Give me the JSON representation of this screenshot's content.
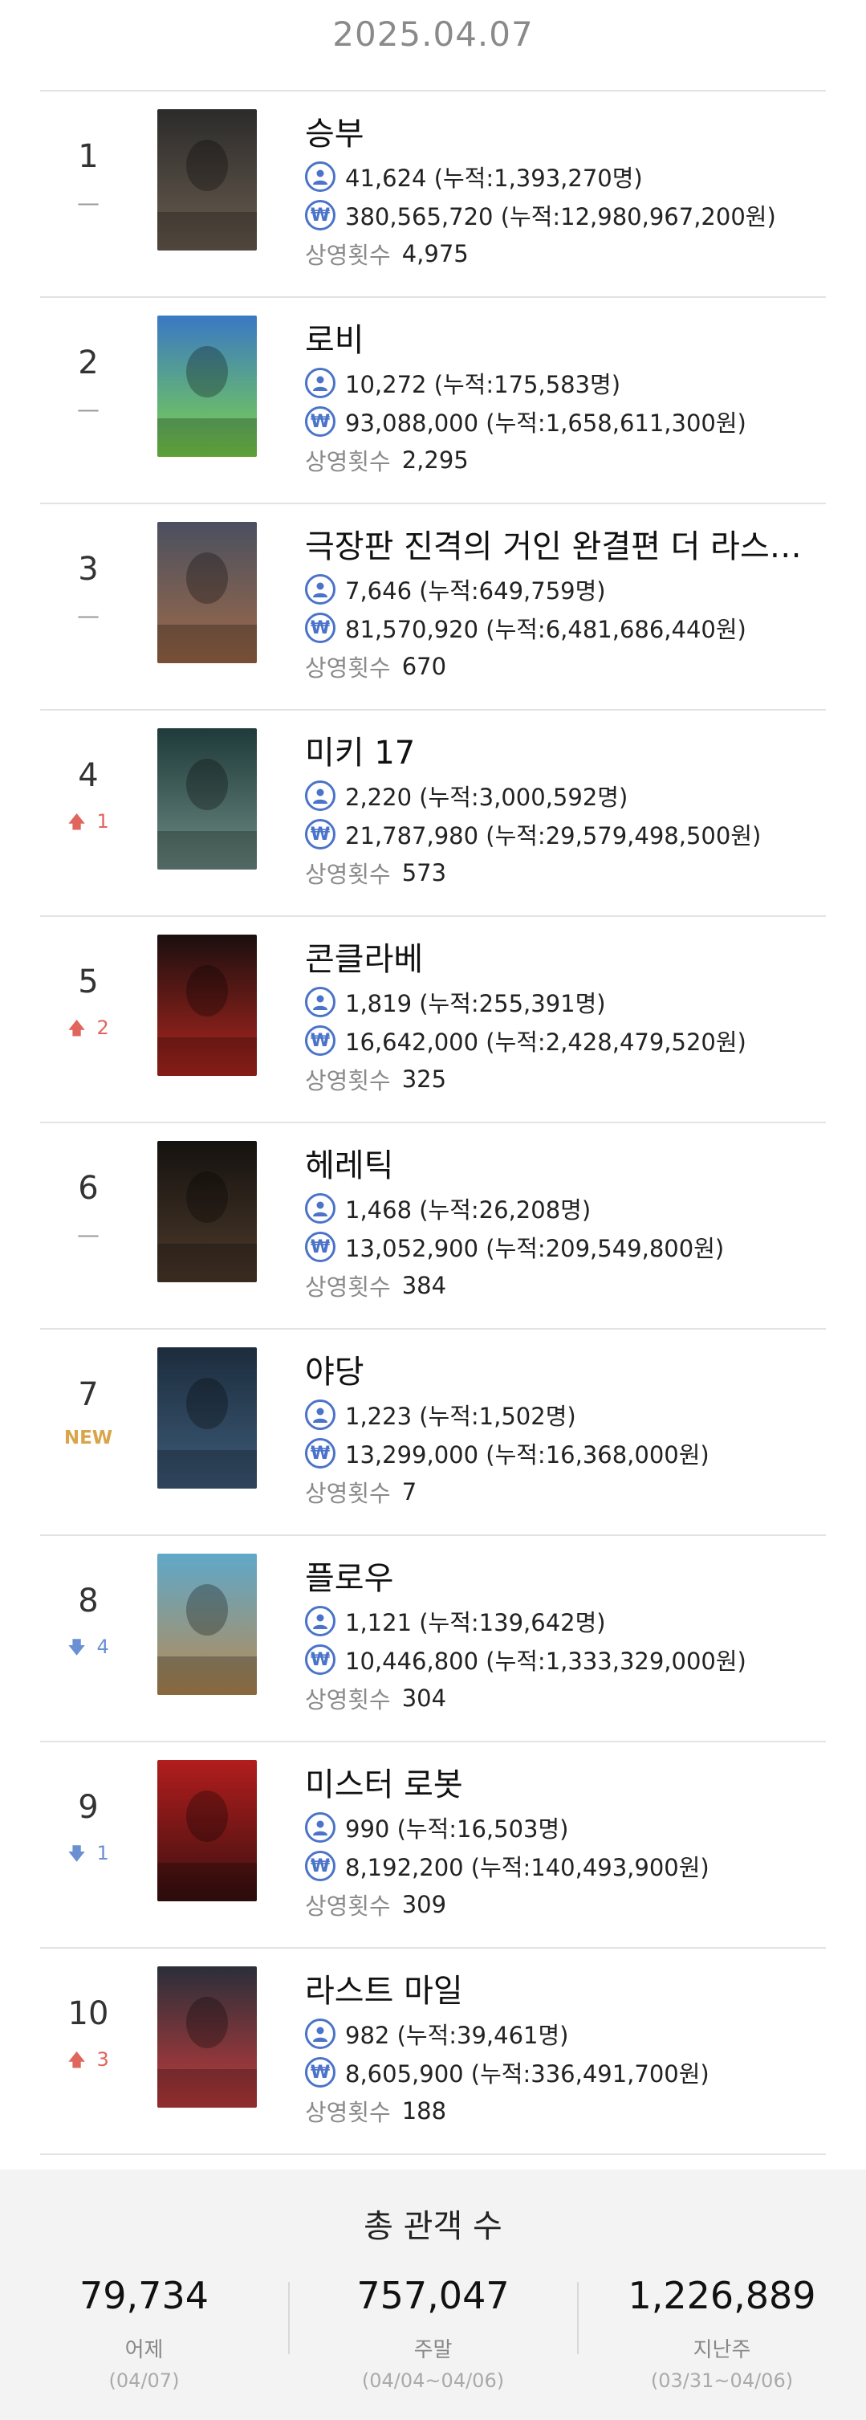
{
  "date": "2025.04.07",
  "screen_label": "상영횟수",
  "movies": [
    {
      "rank": "1",
      "change": "—",
      "change_type": "same",
      "title": "승부",
      "audience": "41,624 (누적:1,393,270명)",
      "sales": "380,565,720 (누적:12,980,967,200원)",
      "screens": "4,975",
      "poster_colors": [
        "#2b2b2b",
        "#6b5d4f"
      ]
    },
    {
      "rank": "2",
      "change": "—",
      "change_type": "same",
      "title": "로비",
      "audience": "10,272 (누적:175,583명)",
      "sales": "93,088,000 (누적:1,658,611,300원)",
      "screens": "2,295",
      "poster_colors": [
        "#3a78c4",
        "#7cd54a"
      ]
    },
    {
      "rank": "3",
      "change": "—",
      "change_type": "same",
      "title": "극장판 진격의 거인 완결편 더 라스트 어택",
      "audience": "7,646 (누적:649,759명)",
      "sales": "81,570,920 (누적:6,481,686,440원)",
      "screens": "670",
      "poster_colors": [
        "#4a5060",
        "#a06a48"
      ]
    },
    {
      "rank": "4",
      "change": "1",
      "change_type": "up",
      "title": "미키 17",
      "audience": "2,220 (누적:3,000,592명)",
      "sales": "21,787,980 (누적:29,579,498,500원)",
      "screens": "573",
      "poster_colors": [
        "#1f3a3a",
        "#6e8c84"
      ]
    },
    {
      "rank": "5",
      "change": "2",
      "change_type": "up",
      "title": "콘클라베",
      "audience": "1,819 (누적:255,391명)",
      "sales": "16,642,000 (누적:2,428,479,520원)",
      "screens": "325",
      "poster_colors": [
        "#1a0f0f",
        "#b3261e"
      ]
    },
    {
      "rank": "6",
      "change": "—",
      "change_type": "same",
      "title": "헤레틱",
      "audience": "1,468 (누적:26,208명)",
      "sales": "13,052,900 (누적:209,549,800원)",
      "screens": "384",
      "poster_colors": [
        "#15120f",
        "#4d3a2b"
      ]
    },
    {
      "rank": "7",
      "change": "NEW",
      "change_type": "new",
      "title": "야당",
      "audience": "1,223 (누적:1,502명)",
      "sales": "13,299,000 (누적:16,368,000원)",
      "screens": "7",
      "poster_colors": [
        "#1c2c3c",
        "#3e5c7a"
      ]
    },
    {
      "rank": "8",
      "change": "4",
      "change_type": "down",
      "title": "플로우",
      "audience": "1,121 (누적:139,642명)",
      "sales": "10,446,800 (누적:1,333,329,000원)",
      "screens": "304",
      "poster_colors": [
        "#5fa8c9",
        "#b88a52"
      ]
    },
    {
      "rank": "9",
      "change": "1",
      "change_type": "down",
      "title": "미스터 로봇",
      "audience": "990 (누적:16,503명)",
      "sales": "8,192,200 (누적:140,493,900원)",
      "screens": "309",
      "poster_colors": [
        "#b21d1d",
        "#3a1010"
      ]
    },
    {
      "rank": "10",
      "change": "3",
      "change_type": "up",
      "title": "라스트 마일",
      "audience": "982 (누적:39,461명)",
      "sales": "8,605,900 (누적:336,491,700원)",
      "screens": "188",
      "poster_colors": [
        "#2a2f3a",
        "#c23b3b"
      ]
    }
  ],
  "summary": {
    "title": "총 관객 수",
    "stats": [
      {
        "value": "79,734",
        "label": "어제",
        "range": "(04/07)"
      },
      {
        "value": "757,047",
        "label": "주말",
        "range": "(04/04~04/06)"
      },
      {
        "value": "1,226,889",
        "label": "지난주",
        "range": "(03/31~04/06)"
      }
    ]
  },
  "icons": {
    "audience": "person-icon",
    "sales": "won-icon"
  },
  "accent_color": "#4a73c9"
}
